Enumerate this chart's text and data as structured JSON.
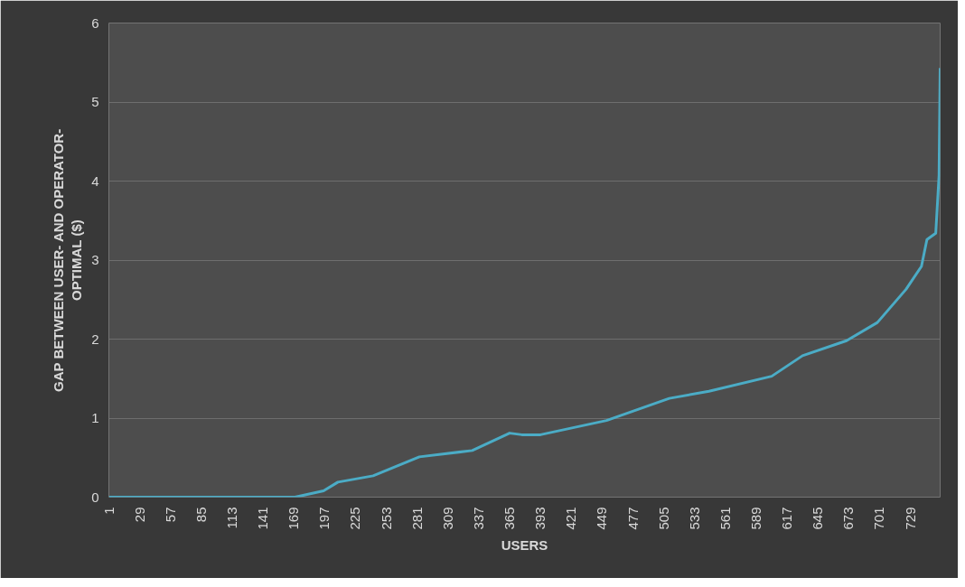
{
  "chart_data": {
    "type": "line",
    "xlabel": "USERS",
    "ylabel": "GAP BETWEEN USER- AND OPERATOR- OPTIMAL ($)",
    "xlim": [
      1,
      756
    ],
    "xticks": [
      1,
      29,
      57,
      85,
      113,
      141,
      169,
      197,
      225,
      253,
      281,
      309,
      337,
      365,
      393,
      421,
      449,
      477,
      505,
      533,
      561,
      589,
      617,
      645,
      673,
      701,
      729
    ],
    "ylim": [
      0,
      6
    ],
    "yticks": [
      0,
      1,
      2,
      3,
      4,
      5,
      6
    ],
    "grid": "y",
    "marker": "none",
    "line_style": "solid",
    "series": [
      {
        "color": "#4bacc6",
        "x": [
          1,
          170,
          196,
          209,
          241,
          283,
          331,
          365,
          376,
          393,
          453,
          510,
          546,
          603,
          631,
          671,
          699,
          725,
          739,
          744,
          752,
          755,
          756
        ],
        "values": [
          0,
          0,
          0.08,
          0.19,
          0.27,
          0.51,
          0.59,
          0.81,
          0.79,
          0.79,
          0.97,
          1.25,
          1.34,
          1.53,
          1.79,
          1.98,
          2.21,
          2.63,
          2.92,
          3.26,
          3.34,
          4.07,
          5.43
        ]
      }
    ]
  }
}
